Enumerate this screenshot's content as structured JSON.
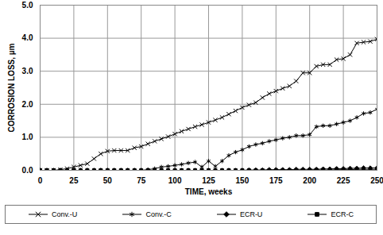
{
  "chart_data": {
    "type": "line",
    "xlabel": "TIME, weeks",
    "ylabel": "CORROSION LOSS, µm",
    "x": [
      0,
      5,
      10,
      15,
      20,
      25,
      30,
      35,
      40,
      45,
      50,
      55,
      60,
      65,
      70,
      75,
      80,
      85,
      90,
      95,
      100,
      105,
      110,
      115,
      120,
      125,
      130,
      135,
      140,
      145,
      150,
      155,
      160,
      165,
      170,
      175,
      180,
      185,
      190,
      195,
      200,
      205,
      210,
      215,
      220,
      225,
      230,
      235,
      240,
      245,
      250
    ],
    "xlim": [
      0,
      250
    ],
    "xticks": [
      0,
      25,
      50,
      75,
      100,
      125,
      150,
      175,
      200,
      225,
      250
    ],
    "ylim": [
      0,
      5
    ],
    "yticks": [
      {
        "value": 0,
        "label": "0.0"
      },
      {
        "value": 1,
        "label": "1.0"
      },
      {
        "value": 2,
        "label": "2.0"
      },
      {
        "value": 3,
        "label": "3.0"
      },
      {
        "value": 4,
        "label": "4.0"
      },
      {
        "value": 5,
        "label": "5.0"
      }
    ],
    "grid": true,
    "legend": "bottom",
    "series": [
      {
        "name": "Conv.-U",
        "color": "#000000",
        "marker": "x",
        "values": [
          0,
          0,
          0,
          0.02,
          0.05,
          0.1,
          0.15,
          0.2,
          0.35,
          0.5,
          0.58,
          0.6,
          0.6,
          0.6,
          0.68,
          0.72,
          0.8,
          0.88,
          0.95,
          1.02,
          1.1,
          1.18,
          1.25,
          1.32,
          1.38,
          1.45,
          1.52,
          1.6,
          1.7,
          1.8,
          1.9,
          1.98,
          2.05,
          2.2,
          2.32,
          2.4,
          2.48,
          2.55,
          2.7,
          2.95,
          2.95,
          3.15,
          3.2,
          3.2,
          3.35,
          3.38,
          3.5,
          3.85,
          3.88,
          3.9,
          3.97
        ]
      },
      {
        "name": "Conv.-C",
        "color": "#000000",
        "marker": "asterisk",
        "values": [
          0,
          0,
          0,
          0,
          0,
          0,
          0,
          0,
          0,
          0,
          0,
          0,
          0,
          0,
          0,
          0,
          0.02,
          0.05,
          0.1,
          0.12,
          0.15,
          0.18,
          0.22,
          0.25,
          0.1,
          0.28,
          0.12,
          0.28,
          0.45,
          0.55,
          0.62,
          0.72,
          0.78,
          0.82,
          0.88,
          0.92,
          0.97,
          1.0,
          1.05,
          1.05,
          1.08,
          1.32,
          1.35,
          1.35,
          1.4,
          1.45,
          1.5,
          1.6,
          1.72,
          1.75,
          1.85
        ]
      },
      {
        "name": "ECR-U",
        "color": "#000000",
        "marker": "diamond",
        "values": [
          0,
          0,
          0,
          0,
          0,
          0,
          0,
          0,
          0,
          0,
          0,
          0,
          0,
          0,
          0,
          0,
          0,
          0,
          0,
          0,
          0,
          0,
          0,
          0,
          0,
          0,
          0,
          0,
          0,
          0,
          0,
          0.01,
          0.01,
          0.01,
          0.02,
          0.02,
          0.02,
          0.02,
          0.03,
          0.03,
          0.03,
          0.03,
          0.04,
          0.04,
          0.05,
          0.05,
          0.06,
          0.06,
          0.07,
          0.07,
          0.07
        ]
      },
      {
        "name": "ECR-C",
        "color": "#000000",
        "marker": "square",
        "values": [
          0,
          0,
          0,
          0,
          0,
          0,
          0,
          0,
          0,
          0,
          0,
          0,
          0,
          0,
          0,
          0,
          0,
          0,
          0,
          0,
          0,
          0,
          0,
          0,
          0,
          0,
          0,
          0,
          0,
          0,
          0,
          0,
          0,
          0,
          0,
          0,
          0,
          0,
          0,
          0,
          0,
          0.01,
          0.01,
          0.01,
          0.02,
          0.02,
          0.02,
          0.03,
          0.03,
          0.03,
          0.03
        ]
      }
    ]
  }
}
